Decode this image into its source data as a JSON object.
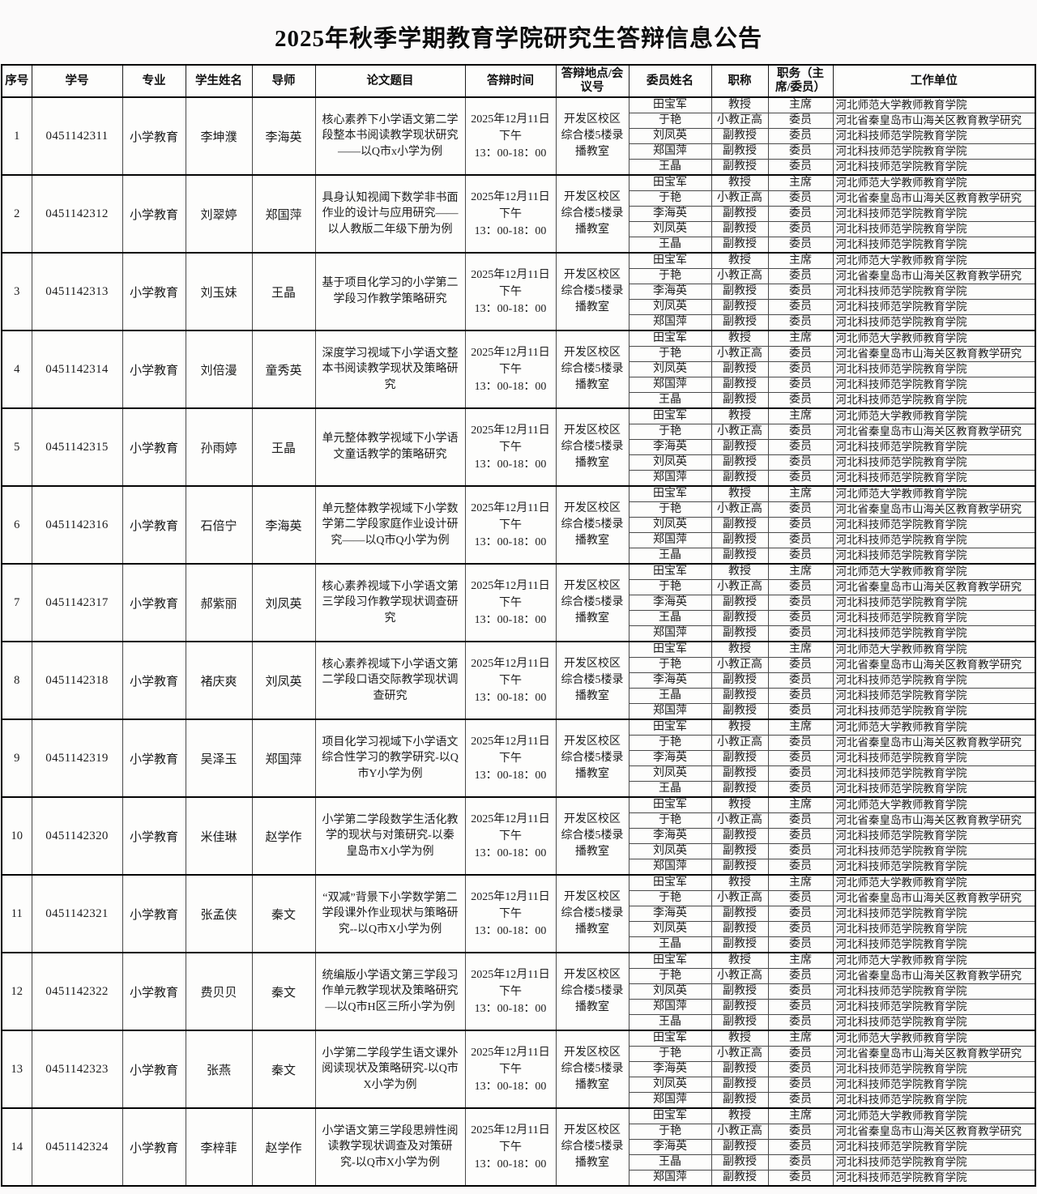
{
  "title": "2025年秋季学期教育学院研究生答辩信息公告",
  "table": {
    "headers": [
      "序号",
      "学号",
      "专业",
      "学生姓名",
      "导师",
      "论文题目",
      "答辩时间",
      "答辩地点/会议号",
      "委员姓名",
      "职称",
      "职务（主席/委员）",
      "工作单位"
    ],
    "rows": [
      {
        "no": "1",
        "student_id": "0451142311",
        "major": "小学教育",
        "student_name": "李坤濮",
        "advisor": "李海英",
        "thesis_title": "核心素养下小学语文第二学段整本书阅读教学现状研究——以Q市x小学为例",
        "defense_time_lines": [
          "2025年12月11日",
          "下午",
          "13：00-18：00"
        ],
        "location": "开发区校区综合楼5楼录播教室",
        "committee": [
          {
            "name": "田宝军",
            "title": "教授",
            "role": "主席",
            "unit": "河北师范大学教师教育学院"
          },
          {
            "name": "于艳",
            "title": "小教正高",
            "role": "委员",
            "unit": "河北省秦皇岛市山海关区教育教学研究"
          },
          {
            "name": "刘凤英",
            "title": "副教授",
            "role": "委员",
            "unit": "河北科技师范学院教育学院"
          },
          {
            "name": "郑国萍",
            "title": "副教授",
            "role": "委员",
            "unit": "河北科技师范学院教育学院"
          },
          {
            "name": "王晶",
            "title": "副教授",
            "role": "委员",
            "unit": "河北科技师范学院教育学院"
          }
        ]
      },
      {
        "no": "2",
        "student_id": "0451142312",
        "major": "小学教育",
        "student_name": "刘翠婷",
        "advisor": "郑国萍",
        "thesis_title": "具身认知视阈下数学非书面作业的设计与应用研究——以人教版二年级下册为例",
        "defense_time_lines": [
          "2025年12月11日",
          "下午",
          "13：00-18：00"
        ],
        "location": "开发区校区综合楼5楼录播教室",
        "committee": [
          {
            "name": "田宝军",
            "title": "教授",
            "role": "主席",
            "unit": "河北师范大学教师教育学院"
          },
          {
            "name": "于艳",
            "title": "小教正高",
            "role": "委员",
            "unit": "河北省秦皇岛市山海关区教育教学研究"
          },
          {
            "name": "李海英",
            "title": "副教授",
            "role": "委员",
            "unit": "河北科技师范学院教育学院"
          },
          {
            "name": "刘凤英",
            "title": "副教授",
            "role": "委员",
            "unit": "河北科技师范学院教育学院"
          },
          {
            "name": "王晶",
            "title": "副教授",
            "role": "委员",
            "unit": "河北科技师范学院教育学院"
          }
        ]
      },
      {
        "no": "3",
        "student_id": "0451142313",
        "major": "小学教育",
        "student_name": "刘玉妹",
        "advisor": "王晶",
        "thesis_title": "基于项目化学习的小学第二学段习作教学策略研究",
        "defense_time_lines": [
          "2025年12月11日",
          "下午",
          "13：00-18：00"
        ],
        "location": "开发区校区综合楼5楼录播教室",
        "committee": [
          {
            "name": "田宝军",
            "title": "教授",
            "role": "主席",
            "unit": "河北师范大学教师教育学院"
          },
          {
            "name": "于艳",
            "title": "小教正高",
            "role": "委员",
            "unit": "河北省秦皇岛市山海关区教育教学研究"
          },
          {
            "name": "李海英",
            "title": "副教授",
            "role": "委员",
            "unit": "河北科技师范学院教育学院"
          },
          {
            "name": "刘凤英",
            "title": "副教授",
            "role": "委员",
            "unit": "河北科技师范学院教育学院"
          },
          {
            "name": "郑国萍",
            "title": "副教授",
            "role": "委员",
            "unit": "河北科技师范学院教育学院"
          }
        ]
      },
      {
        "no": "4",
        "student_id": "0451142314",
        "major": "小学教育",
        "student_name": "刘倍漫",
        "advisor": "童秀英",
        "thesis_title": "深度学习视域下小学语文整本书阅读教学现状及策略研究",
        "defense_time_lines": [
          "2025年12月11日",
          "下午",
          "13：00-18：00"
        ],
        "location": "开发区校区综合楼5楼录播教室",
        "committee": [
          {
            "name": "田宝军",
            "title": "教授",
            "role": "主席",
            "unit": "河北师范大学教师教育学院"
          },
          {
            "name": "于艳",
            "title": "小教正高",
            "role": "委员",
            "unit": "河北省秦皇岛市山海关区教育教学研究"
          },
          {
            "name": "刘凤英",
            "title": "副教授",
            "role": "委员",
            "unit": "河北科技师范学院教育学院"
          },
          {
            "name": "郑国萍",
            "title": "副教授",
            "role": "委员",
            "unit": "河北科技师范学院教育学院"
          },
          {
            "name": "王晶",
            "title": "副教授",
            "role": "委员",
            "unit": "河北科技师范学院教育学院"
          }
        ]
      },
      {
        "no": "5",
        "student_id": "0451142315",
        "major": "小学教育",
        "student_name": "孙雨婷",
        "advisor": "王晶",
        "thesis_title": "单元整体教学视域下小学语文童话教学的策略研究",
        "defense_time_lines": [
          "2025年12月11日",
          "下午",
          "13：00-18：00"
        ],
        "location": "开发区校区综合楼5楼录播教室",
        "committee": [
          {
            "name": "田宝军",
            "title": "教授",
            "role": "主席",
            "unit": "河北师范大学教师教育学院"
          },
          {
            "name": "于艳",
            "title": "小教正高",
            "role": "委员",
            "unit": "河北省秦皇岛市山海关区教育教学研究"
          },
          {
            "name": "李海英",
            "title": "副教授",
            "role": "委员",
            "unit": "河北科技师范学院教育学院"
          },
          {
            "name": "刘凤英",
            "title": "副教授",
            "role": "委员",
            "unit": "河北科技师范学院教育学院"
          },
          {
            "name": "郑国萍",
            "title": "副教授",
            "role": "委员",
            "unit": "河北科技师范学院教育学院"
          }
        ]
      },
      {
        "no": "6",
        "student_id": "0451142316",
        "major": "小学教育",
        "student_name": "石倍宁",
        "advisor": "李海英",
        "thesis_title": "单元整体教学视域下小学数学第二学段家庭作业设计研究——以Q市Q小学为例",
        "defense_time_lines": [
          "2025年12月11日",
          "下午",
          "13：00-18：00"
        ],
        "location": "开发区校区综合楼5楼录播教室",
        "committee": [
          {
            "name": "田宝军",
            "title": "教授",
            "role": "主席",
            "unit": "河北师范大学教师教育学院"
          },
          {
            "name": "于艳",
            "title": "小教正高",
            "role": "委员",
            "unit": "河北省秦皇岛市山海关区教育教学研究"
          },
          {
            "name": "刘凤英",
            "title": "副教授",
            "role": "委员",
            "unit": "河北科技师范学院教育学院"
          },
          {
            "name": "郑国萍",
            "title": "副教授",
            "role": "委员",
            "unit": "河北科技师范学院教育学院"
          },
          {
            "name": "王晶",
            "title": "副教授",
            "role": "委员",
            "unit": "河北科技师范学院教育学院"
          }
        ]
      },
      {
        "no": "7",
        "student_id": "0451142317",
        "major": "小学教育",
        "student_name": "郝紫丽",
        "advisor": "刘凤英",
        "thesis_title": "核心素养视域下小学语文第三学段习作教学现状调查研究",
        "defense_time_lines": [
          "2025年12月11日",
          "下午",
          "13：00-18：00"
        ],
        "location": "开发区校区综合楼5楼录播教室",
        "committee": [
          {
            "name": "田宝军",
            "title": "教授",
            "role": "主席",
            "unit": "河北师范大学教师教育学院"
          },
          {
            "name": "于艳",
            "title": "小教正高",
            "role": "委员",
            "unit": "河北省秦皇岛市山海关区教育教学研究"
          },
          {
            "name": "李海英",
            "title": "副教授",
            "role": "委员",
            "unit": "河北科技师范学院教育学院"
          },
          {
            "name": "王晶",
            "title": "副教授",
            "role": "委员",
            "unit": "河北科技师范学院教育学院"
          },
          {
            "name": "郑国萍",
            "title": "副教授",
            "role": "委员",
            "unit": "河北科技师范学院教育学院"
          }
        ]
      },
      {
        "no": "8",
        "student_id": "0451142318",
        "major": "小学教育",
        "student_name": "褚庆爽",
        "advisor": "刘凤英",
        "thesis_title": "核心素养视域下小学语文第二学段口语交际教学现状调查研究",
        "defense_time_lines": [
          "2025年12月11日",
          "下午",
          "13：00-18：00"
        ],
        "location": "开发区校区综合楼5楼录播教室",
        "committee": [
          {
            "name": "田宝军",
            "title": "教授",
            "role": "主席",
            "unit": "河北师范大学教师教育学院"
          },
          {
            "name": "于艳",
            "title": "小教正高",
            "role": "委员",
            "unit": "河北省秦皇岛市山海关区教育教学研究"
          },
          {
            "name": "李海英",
            "title": "副教授",
            "role": "委员",
            "unit": "河北科技师范学院教育学院"
          },
          {
            "name": "王晶",
            "title": "副教授",
            "role": "委员",
            "unit": "河北科技师范学院教育学院"
          },
          {
            "name": "郑国萍",
            "title": "副教授",
            "role": "委员",
            "unit": "河北科技师范学院教育学院"
          }
        ]
      },
      {
        "no": "9",
        "student_id": "0451142319",
        "major": "小学教育",
        "student_name": "吴泽玉",
        "advisor": "郑国萍",
        "thesis_title": "项目化学习视域下小学语文综合性学习的教学研究-以Q市Y小学为例",
        "defense_time_lines": [
          "2025年12月11日",
          "下午",
          "13：00-18：00"
        ],
        "location": "开发区校区综合楼5楼录播教室",
        "committee": [
          {
            "name": "田宝军",
            "title": "教授",
            "role": "主席",
            "unit": "河北师范大学教师教育学院"
          },
          {
            "name": "于艳",
            "title": "小教正高",
            "role": "委员",
            "unit": "河北省秦皇岛市山海关区教育教学研究"
          },
          {
            "name": "李海英",
            "title": "副教授",
            "role": "委员",
            "unit": "河北科技师范学院教育学院"
          },
          {
            "name": "刘凤英",
            "title": "副教授",
            "role": "委员",
            "unit": "河北科技师范学院教育学院"
          },
          {
            "name": "王晶",
            "title": "副教授",
            "role": "委员",
            "unit": "河北科技师范学院教育学院"
          }
        ]
      },
      {
        "no": "10",
        "student_id": "0451142320",
        "major": "小学教育",
        "student_name": "米佳琳",
        "advisor": "赵学作",
        "thesis_title": "小学第二学段数学生活化教学的现状与对策研究-以秦皇岛市X小学为例",
        "defense_time_lines": [
          "2025年12月11日",
          "下午",
          "13：00-18：00"
        ],
        "location": "开发区校区综合楼5楼录播教室",
        "committee": [
          {
            "name": "田宝军",
            "title": "教授",
            "role": "主席",
            "unit": "河北师范大学教师教育学院"
          },
          {
            "name": "于艳",
            "title": "小教正高",
            "role": "委员",
            "unit": "河北省秦皇岛市山海关区教育教学研究"
          },
          {
            "name": "李海英",
            "title": "副教授",
            "role": "委员",
            "unit": "河北科技师范学院教育学院"
          },
          {
            "name": "刘凤英",
            "title": "副教授",
            "role": "委员",
            "unit": "河北科技师范学院教育学院"
          },
          {
            "name": "郑国萍",
            "title": "副教授",
            "role": "委员",
            "unit": "河北科技师范学院教育学院"
          }
        ]
      },
      {
        "no": "11",
        "student_id": "0451142321",
        "major": "小学教育",
        "student_name": "张孟侠",
        "advisor": "秦文",
        "thesis_title": "“双减”背景下小学数学第二学段课外作业现状与策略研究--以Q市X小学为例",
        "defense_time_lines": [
          "2025年12月11日",
          "下午",
          "13：00-18：00"
        ],
        "location": "开发区校区综合楼5楼录播教室",
        "committee": [
          {
            "name": "田宝军",
            "title": "教授",
            "role": "主席",
            "unit": "河北师范大学教师教育学院"
          },
          {
            "name": "于艳",
            "title": "小教正高",
            "role": "委员",
            "unit": "河北省秦皇岛市山海关区教育教学研究"
          },
          {
            "name": "李海英",
            "title": "副教授",
            "role": "委员",
            "unit": "河北科技师范学院教育学院"
          },
          {
            "name": "刘凤英",
            "title": "副教授",
            "role": "委员",
            "unit": "河北科技师范学院教育学院"
          },
          {
            "name": "王晶",
            "title": "副教授",
            "role": "委员",
            "unit": "河北科技师范学院教育学院"
          }
        ]
      },
      {
        "no": "12",
        "student_id": "0451142322",
        "major": "小学教育",
        "student_name": "费贝贝",
        "advisor": "秦文",
        "thesis_title": "统编版小学语文第三学段习作单元教学现状及策略研究—以Q市H区三所小学为例",
        "defense_time_lines": [
          "2025年12月11日",
          "下午",
          "13：00-18：00"
        ],
        "location": "开发区校区综合楼5楼录播教室",
        "committee": [
          {
            "name": "田宝军",
            "title": "教授",
            "role": "主席",
            "unit": "河北师范大学教师教育学院"
          },
          {
            "name": "于艳",
            "title": "小教正高",
            "role": "委员",
            "unit": "河北省秦皇岛市山海关区教育教学研究"
          },
          {
            "name": "刘凤英",
            "title": "副教授",
            "role": "委员",
            "unit": "河北科技师范学院教育学院"
          },
          {
            "name": "郑国萍",
            "title": "副教授",
            "role": "委员",
            "unit": "河北科技师范学院教育学院"
          },
          {
            "name": "王晶",
            "title": "副教授",
            "role": "委员",
            "unit": "河北科技师范学院教育学院"
          }
        ]
      },
      {
        "no": "13",
        "student_id": "0451142323",
        "major": "小学教育",
        "student_name": "张燕",
        "advisor": "秦文",
        "thesis_title": "小学第二学段学生语文课外阅读现状及策略研究-以Q市X小学为例",
        "defense_time_lines": [
          "2025年12月11日",
          "下午",
          "13：00-18：00"
        ],
        "location": "开发区校区综合楼5楼录播教室",
        "committee": [
          {
            "name": "田宝军",
            "title": "教授",
            "role": "主席",
            "unit": "河北师范大学教师教育学院"
          },
          {
            "name": "于艳",
            "title": "小教正高",
            "role": "委员",
            "unit": "河北省秦皇岛市山海关区教育教学研究"
          },
          {
            "name": "李海英",
            "title": "副教授",
            "role": "委员",
            "unit": "河北科技师范学院教育学院"
          },
          {
            "name": "刘凤英",
            "title": "副教授",
            "role": "委员",
            "unit": "河北科技师范学院教育学院"
          },
          {
            "name": "郑国萍",
            "title": "副教授",
            "role": "委员",
            "unit": "河北科技师范学院教育学院"
          }
        ]
      },
      {
        "no": "14",
        "student_id": "0451142324",
        "major": "小学教育",
        "student_name": "李梓菲",
        "advisor": "赵学作",
        "thesis_title": "小学语文第三学段思辨性阅读教学现状调查及对策研究-以Q市X小学为例",
        "defense_time_lines": [
          "2025年12月11日",
          "下午",
          "13：00-18：00"
        ],
        "location": "开发区校区综合楼5楼录播教室",
        "committee": [
          {
            "name": "田宝军",
            "title": "教授",
            "role": "主席",
            "unit": "河北师范大学教师教育学院"
          },
          {
            "name": "于艳",
            "title": "小教正高",
            "role": "委员",
            "unit": "河北省秦皇岛市山海关区教育教学研究"
          },
          {
            "name": "李海英",
            "title": "副教授",
            "role": "委员",
            "unit": "河北科技师范学院教育学院"
          },
          {
            "name": "王晶",
            "title": "副教授",
            "role": "委员",
            "unit": "河北科技师范学院教育学院"
          },
          {
            "name": "郑国萍",
            "title": "副教授",
            "role": "委员",
            "unit": "河北科技师范学院教育学院"
          }
        ]
      }
    ]
  }
}
